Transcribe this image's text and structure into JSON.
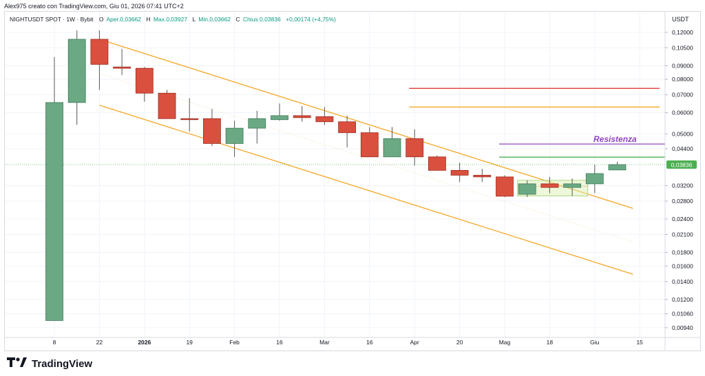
{
  "header": {
    "credit": "Alex975 creato con TradingView.com, Giu 01, 2026 07:41 UTC+2",
    "legend": {
      "symbol": "NIGHTUSDT SPOT · 1W · Bybit",
      "o_label": "O",
      "o_value": "Aper.0,03662",
      "h_label": "H",
      "h_value": "Max.0,03927",
      "l_label": "L",
      "l_value": "Min.0,03662",
      "c_label": "C",
      "c_value": "Chius.0,03836",
      "change": "+0,00174 (+4,75%)"
    }
  },
  "brand": {
    "name": "TradingView",
    "logo": "tradingview-logo-icon"
  },
  "colors": {
    "up": "#6aa984",
    "down": "#d9503e",
    "channel": "#f5a623",
    "resistance": "#8e44c0",
    "last_price": "#4caf50"
  },
  "chart_data": {
    "type": "candlestick",
    "y_scale": "log",
    "ylim": [
      0.0088,
      0.1265
    ],
    "y_axis_unit": "USDT",
    "y_ticks": [
      "0,12000",
      "0,10500",
      "0,09000",
      "0,08000",
      "0,07000",
      "0,06000",
      "0,05000",
      "0,04400",
      "0,03200",
      "0,02800",
      "0,02400",
      "0,02100",
      "0,01800",
      "0,01600",
      "0,01400",
      "0,01200",
      "0,01060",
      "0,00940"
    ],
    "x_labels": [
      "8",
      "22",
      "2026",
      "19",
      "Feb",
      "16",
      "Mar",
      "16",
      "Apr",
      "20",
      "Mag",
      "18",
      "Giu",
      "15"
    ],
    "candles": [
      {
        "o": 0.01,
        "h": 0.097,
        "l": 0.01,
        "c": 0.0655
      },
      {
        "o": 0.0655,
        "h": 0.122,
        "l": 0.054,
        "c": 0.113
      },
      {
        "o": 0.113,
        "h": 0.122,
        "l": 0.073,
        "c": 0.091
      },
      {
        "o": 0.089,
        "h": 0.104,
        "l": 0.083,
        "c": 0.088
      },
      {
        "o": 0.088,
        "h": 0.089,
        "l": 0.066,
        "c": 0.071
      },
      {
        "o": 0.071,
        "h": 0.073,
        "l": 0.057,
        "c": 0.057
      },
      {
        "o": 0.057,
        "h": 0.068,
        "l": 0.051,
        "c": 0.0565
      },
      {
        "o": 0.057,
        "h": 0.062,
        "l": 0.045,
        "c": 0.046
      },
      {
        "o": 0.046,
        "h": 0.056,
        "l": 0.041,
        "c": 0.0525
      },
      {
        "o": 0.0525,
        "h": 0.061,
        "l": 0.046,
        "c": 0.057
      },
      {
        "o": 0.0565,
        "h": 0.065,
        "l": 0.056,
        "c": 0.0585
      },
      {
        "o": 0.0585,
        "h": 0.0635,
        "l": 0.0555,
        "c": 0.0575
      },
      {
        "o": 0.058,
        "h": 0.063,
        "l": 0.054,
        "c": 0.0555
      },
      {
        "o": 0.0555,
        "h": 0.0585,
        "l": 0.0445,
        "c": 0.0505
      },
      {
        "o": 0.0505,
        "h": 0.053,
        "l": 0.041,
        "c": 0.041
      },
      {
        "o": 0.041,
        "h": 0.053,
        "l": 0.041,
        "c": 0.048
      },
      {
        "o": 0.048,
        "h": 0.052,
        "l": 0.038,
        "c": 0.041
      },
      {
        "o": 0.041,
        "h": 0.0415,
        "l": 0.0365,
        "c": 0.0365
      },
      {
        "o": 0.0365,
        "h": 0.039,
        "l": 0.033,
        "c": 0.035
      },
      {
        "o": 0.035,
        "h": 0.037,
        "l": 0.033,
        "c": 0.0345
      },
      {
        "o": 0.0345,
        "h": 0.035,
        "l": 0.029,
        "c": 0.0292
      },
      {
        "o": 0.0297,
        "h": 0.0335,
        "l": 0.029,
        "c": 0.0325
      },
      {
        "o": 0.0325,
        "h": 0.0345,
        "l": 0.03,
        "c": 0.0315
      },
      {
        "o": 0.0315,
        "h": 0.034,
        "l": 0.0293,
        "c": 0.0325
      },
      {
        "o": 0.0325,
        "h": 0.0383,
        "l": 0.03,
        "c": 0.0355
      },
      {
        "o": 0.03662,
        "h": 0.03927,
        "l": 0.03662,
        "c": 0.03836
      }
    ],
    "levels": [
      {
        "name": "red-level",
        "price": 0.074,
        "color": "#e53935",
        "start_index": 16
      },
      {
        "name": "orange-level",
        "price": 0.063,
        "color": "#f5a623",
        "start_index": 16
      },
      {
        "name": "resistance-level",
        "price": 0.0458,
        "color": "#8e44c0",
        "start_index": 20,
        "label": "Resistenza"
      },
      {
        "name": "green-level",
        "price": 0.0409,
        "color": "#4caf50",
        "start_index": 20
      }
    ],
    "last_price": {
      "value": 0.03836,
      "label": "0,03836"
    }
  }
}
